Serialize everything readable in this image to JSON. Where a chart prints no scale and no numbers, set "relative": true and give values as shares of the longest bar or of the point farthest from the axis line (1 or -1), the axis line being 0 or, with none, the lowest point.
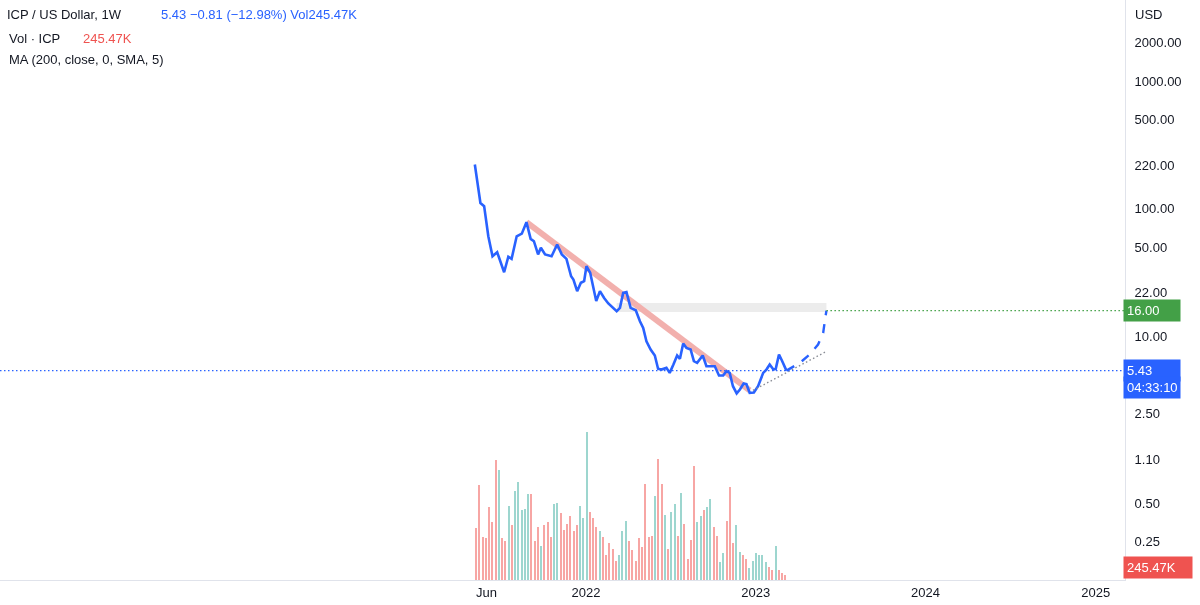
{
  "chart_data": [
    {
      "type": "line",
      "title": "ICP / US Dollar, 1W",
      "ylabel": "USD",
      "annotations": [
        "5.43 −0.81 (−12.98%) Vol245.47K",
        "MA (200, close, 0, SMA, 5)",
        "04:33:10"
      ],
      "log": true,
      "ylim": [
        0.125,
        4300
      ],
      "yticks": [
        {
          "value": 0.25,
          "label": "0.25"
        },
        {
          "value": 0.5,
          "label": "0.50"
        },
        {
          "value": 1.1,
          "label": "1.10"
        },
        {
          "value": 2.5,
          "label": "2.50"
        },
        {
          "value": 10,
          "label": "10.00"
        },
        {
          "value": 22,
          "label": "22.00"
        },
        {
          "value": 50,
          "label": "50.00"
        },
        {
          "value": 100,
          "label": "100.00"
        },
        {
          "value": 220,
          "label": "220.00"
        },
        {
          "value": 500,
          "label": "500.00"
        },
        {
          "value": 1000,
          "label": "1000.00"
        },
        {
          "value": 2000,
          "label": "2000.00"
        }
      ],
      "xlim": [
        "2018-07-21",
        "2025-03-05"
      ],
      "xticks": [
        {
          "value": "2021-06",
          "label": "Jun"
        },
        {
          "value": "2022",
          "label": "2022"
        },
        {
          "value": "2023",
          "label": "2023"
        },
        {
          "value": "2024",
          "label": "2024"
        },
        {
          "value": "2025",
          "label": "2025"
        }
      ],
      "ref_lines": [
        {
          "axis": "y",
          "value": 5.43,
          "label": "5.43",
          "color": "#2962ff",
          "line_style": "dotted"
        }
      ],
      "series": [
        {
          "color": "#ececec",
          "x": [
            "2022-03-08",
            "2023-06-02"
          ],
          "values": [
            16.9,
            16.9
          ]
        },
        {
          "color": "#f2b0ad",
          "x": [
            "2021-08-26",
            "2022-12-19"
          ],
          "values": [
            78.7,
            3.8
          ]
        },
        {
          "color": "#2962ff",
          "x": [
            "2021-05-07",
            "2021-05-19",
            "2021-05-27",
            "2021-06-05",
            "2021-06-14",
            "2021-06-24",
            "2021-07-09",
            "2021-07-18",
            "2021-07-25",
            "2021-08-05",
            "2021-08-16",
            "2021-08-26",
            "2021-09-04",
            "2021-09-11",
            "2021-09-20",
            "2021-09-26",
            "2021-10-05",
            "2021-10-19",
            "2021-10-31",
            "2021-11-10",
            "2021-11-20",
            "2021-11-30",
            "2021-12-05",
            "2021-12-13",
            "2021-12-21",
            "2021-12-28",
            "2022-01-02",
            "2022-01-10",
            "2022-01-23",
            "2022-01-31",
            "2022-02-09",
            "2022-02-18",
            "2022-03-08",
            "2022-03-15",
            "2022-03-22",
            "2022-03-29",
            "2022-04-07",
            "2022-04-18",
            "2022-04-27",
            "2022-05-04",
            "2022-05-11",
            "2022-05-20",
            "2022-05-29",
            "2022-06-05",
            "2022-06-12",
            "2022-06-23",
            "2022-06-30",
            "2022-07-08",
            "2022-07-16",
            "2022-07-22",
            "2022-07-29",
            "2022-08-05",
            "2022-08-14",
            "2022-08-21",
            "2022-08-28",
            "2022-09-09",
            "2022-09-17",
            "2022-10-05",
            "2022-10-14",
            "2022-10-23",
            "2022-10-30",
            "2022-11-06",
            "2022-11-13",
            "2022-11-21",
            "2022-11-28",
            "2022-12-06",
            "2022-12-12",
            "2022-12-19",
            "2022-12-28",
            "2023-01-06",
            "2023-01-17",
            "2023-01-24",
            "2023-01-31",
            "2023-02-08",
            "2023-02-13",
            "2023-02-20",
            "2023-02-27",
            "2023-03-08"
          ],
          "values": [
            222,
            111,
            105,
            61,
            42.6,
            45.8,
            31.9,
            42.2,
            40.6,
            61,
            64,
            78.7,
            58.2,
            55.8,
            44,
            49.6,
            44,
            42.6,
            52.6,
            44,
            40.6,
            29.7,
            28,
            22.7,
            26.4,
            27.2,
            35.6,
            31.6,
            19,
            22.7,
            20.1,
            18.2,
            15.8,
            16.8,
            22,
            22.3,
            16.8,
            16.1,
            13.2,
            11.7,
            9.2,
            7.94,
            7.13,
            5.61,
            5.53,
            5.7,
            5.21,
            6.05,
            7.13,
            6.71,
            8.85,
            8.18,
            7.94,
            6.43,
            6.24,
            7.13,
            5.87,
            5.87,
            4.97,
            4.97,
            5.37,
            5.21,
            4.1,
            3.6,
            3.86,
            4.3,
            4.25,
            3.64,
            3.66,
            4.1,
            5.21,
            5.53,
            6.05,
            5.53,
            5.6,
            7.26,
            6.43,
            5.43
          ]
        },
        {
          "color": "#8a8d96",
          "line_style": "dotted",
          "x": [
            "2022-12-26",
            "2023-06-03"
          ],
          "values": [
            3.8,
            7.7
          ]
        },
        {
          "color": "#2962ff",
          "line_style": "dashed",
          "x": [
            "2023-03-08",
            "2023-04-06",
            "2023-04-27",
            "2023-05-15",
            "2023-05-26",
            "2023-05-30",
            "2023-06-02"
          ],
          "values": [
            5.43,
            6.24,
            7.26,
            8.68,
            10.7,
            13.6,
            16
          ]
        },
        {
          "color": "#43a047",
          "line_style": "dotted",
          "x": [
            "2023-06-02",
            "2025-03-05"
          ],
          "values": [
            16,
            16
          ],
          "value_labels": [
            null,
            "16.00"
          ]
        }
      ]
    },
    {
      "type": "bar",
      "title": "Vol · ICP",
      "annotations": [
        "245.47K",
        "245.47K"
      ],
      "relative": true,
      "tick_labels": false,
      "xlim": [
        "2018-07-21",
        "2025-03-05"
      ],
      "x": [
        "2021-05-10",
        "2021-05-17",
        "2021-05-24",
        "2021-05-31",
        "2021-06-07",
        "2021-06-14",
        "2021-06-21",
        "2021-06-28",
        "2021-07-05",
        "2021-07-12",
        "2021-07-19",
        "2021-07-26",
        "2021-08-02",
        "2021-08-09",
        "2021-08-16",
        "2021-08-23",
        "2021-08-30",
        "2021-09-06",
        "2021-09-13",
        "2021-09-20",
        "2021-09-27",
        "2021-10-04",
        "2021-10-11",
        "2021-10-18",
        "2021-10-25",
        "2021-11-01",
        "2021-11-08",
        "2021-11-15",
        "2021-11-22",
        "2021-11-29",
        "2021-12-06",
        "2021-12-13",
        "2021-12-20",
        "2021-12-27",
        "2022-01-03",
        "2022-01-10",
        "2022-01-17",
        "2022-01-24",
        "2022-01-31",
        "2022-02-07",
        "2022-02-14",
        "2022-02-21",
        "2022-02-28",
        "2022-03-07",
        "2022-03-14",
        "2022-03-21",
        "2022-03-28",
        "2022-04-04",
        "2022-04-11",
        "2022-04-18",
        "2022-04-25",
        "2022-05-02",
        "2022-05-09",
        "2022-05-16",
        "2022-05-23",
        "2022-05-30",
        "2022-06-06",
        "2022-06-13",
        "2022-06-20",
        "2022-06-27",
        "2022-07-04",
        "2022-07-11",
        "2022-07-18",
        "2022-07-25",
        "2022-08-01",
        "2022-08-08",
        "2022-08-15",
        "2022-08-22",
        "2022-08-29",
        "2022-09-05",
        "2022-09-12",
        "2022-09-19",
        "2022-09-26",
        "2022-10-03",
        "2022-10-10",
        "2022-10-17",
        "2022-10-24",
        "2022-10-31",
        "2022-11-07",
        "2022-11-14",
        "2022-11-21",
        "2022-11-28",
        "2022-12-05",
        "2022-12-12",
        "2022-12-19",
        "2022-12-26",
        "2023-01-02",
        "2023-01-09",
        "2023-01-16",
        "2023-01-23",
        "2023-01-30",
        "2023-02-06",
        "2023-02-13",
        "2023-02-20",
        "2023-02-27",
        "2023-03-06"
      ],
      "values": [
        0.35,
        0.64,
        0.29,
        0.28,
        0.49,
        0.39,
        0.81,
        0.74,
        0.28,
        0.26,
        0.5,
        0.37,
        0.6,
        0.66,
        0.47,
        0.48,
        0.58,
        0.58,
        0.26,
        0.36,
        0.23,
        0.37,
        0.39,
        0.29,
        0.51,
        0.52,
        0.45,
        0.34,
        0.38,
        0.43,
        0.33,
        0.37,
        0.5,
        0.42,
        1,
        0.46,
        0.42,
        0.36,
        0.33,
        0.29,
        0.17,
        0.25,
        0.21,
        0.13,
        0.17,
        0.33,
        0.4,
        0.26,
        0.2,
        0.13,
        0.28,
        0.22,
        0.65,
        0.29,
        0.3,
        0.57,
        0.82,
        0.65,
        0.44,
        0.21,
        0.46,
        0.51,
        0.3,
        0.59,
        0.38,
        0.14,
        0.27,
        0.77,
        0.39,
        0.43,
        0.47,
        0.49,
        0.55,
        0.36,
        0.3,
        0.12,
        0.18,
        0.4,
        0.63,
        0.25,
        0.37,
        0.19,
        0.17,
        0.14,
        0.08,
        0.13,
        0.18,
        0.17,
        0.17,
        0.12,
        0.09,
        0.07,
        0.23,
        0.07,
        0.05,
        0.03
      ],
      "colors": [
        "#f7a6a4",
        "#f7a6a4",
        "#f7a6a4",
        "#f7a6a4",
        "#f7a6a4",
        "#f7a6a4",
        "#f7a6a4",
        "#9dd6cf",
        "#f7a6a4",
        "#f7a6a4",
        "#9dd6cf",
        "#f7a6a4",
        "#9dd6cf",
        "#9dd6cf",
        "#9dd6cf",
        "#9dd6cf",
        "#9dd6cf",
        "#f7a6a4",
        "#f7a6a4",
        "#f7a6a4",
        "#9dd6cf",
        "#f7a6a4",
        "#f7a6a4",
        "#f7a6a4",
        "#9dd6cf",
        "#9dd6cf",
        "#f7a6a4",
        "#f7a6a4",
        "#f7a6a4",
        "#f7a6a4",
        "#f7a6a4",
        "#f7a6a4",
        "#9dd6cf",
        "#9dd6cf",
        "#9dd6cf",
        "#f7a6a4",
        "#f7a6a4",
        "#f7a6a4",
        "#9dd6cf",
        "#f7a6a4",
        "#f7a6a4",
        "#f7a6a4",
        "#f7a6a4",
        "#f7a6a4",
        "#9dd6cf",
        "#9dd6cf",
        "#9dd6cf",
        "#f7a6a4",
        "#f7a6a4",
        "#f7a6a4",
        "#f7a6a4",
        "#f7a6a4",
        "#f7a6a4",
        "#f7a6a4",
        "#f7a6a4",
        "#9dd6cf",
        "#f7a6a4",
        "#f7a6a4",
        "#9dd6cf",
        "#f7a6a4",
        "#9dd6cf",
        "#9dd6cf",
        "#f7a6a4",
        "#9dd6cf",
        "#f7a6a4",
        "#f7a6a4",
        "#f7a6a4",
        "#f7a6a4",
        "#9dd6cf",
        "#9dd6cf",
        "#f7a6a4",
        "#9dd6cf",
        "#9dd6cf",
        "#f7a6a4",
        "#f7a6a4",
        "#9dd6cf",
        "#9dd6cf",
        "#f7a6a4",
        "#f7a6a4",
        "#f7a6a4",
        "#9dd6cf",
        "#9dd6cf",
        "#f7a6a4",
        "#f7a6a4",
        "#9dd6cf",
        "#9dd6cf",
        "#9dd6cf",
        "#9dd6cf",
        "#9dd6cf",
        "#9dd6cf",
        "#f7a6a4",
        "#f7a6a4",
        "#9dd6cf",
        "#f7a6a4",
        "#f7a6a4",
        "#f7a6a4"
      ]
    }
  ]
}
